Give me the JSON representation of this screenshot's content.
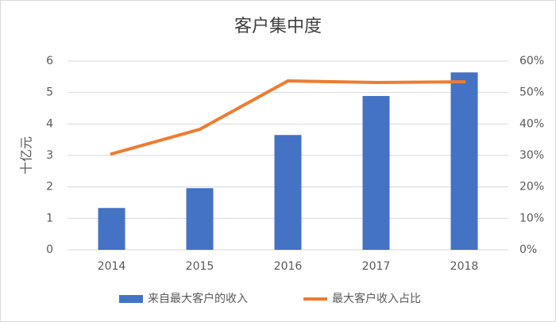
{
  "chart_data": {
    "type": "combo",
    "title": "客户集中度",
    "y_label": "十亿元",
    "categories": [
      "2014",
      "2015",
      "2016",
      "2017",
      "2018"
    ],
    "series": [
      {
        "name": "来自最大客户的收入",
        "type": "bar",
        "color": "#4472c4",
        "values": [
          1.33,
          1.96,
          3.65,
          4.89,
          5.64
        ]
      },
      {
        "name": "最大客户收入占比",
        "type": "line",
        "axis": "y2",
        "color": "#ed7d31",
        "values": [
          30.5,
          38.3,
          53.7,
          53.2,
          53.4
        ]
      }
    ],
    "ylim": [
      0,
      6
    ],
    "yticks": [
      0,
      1,
      2,
      3,
      4,
      5,
      6
    ],
    "y2lim": [
      0,
      60
    ],
    "y2ticks": [
      {
        "value": 0,
        "label": "0%"
      },
      {
        "value": 10,
        "label": "10%"
      },
      {
        "value": 20,
        "label": "20%"
      },
      {
        "value": 30,
        "label": "30%"
      },
      {
        "value": 40,
        "label": "40%"
      },
      {
        "value": 50,
        "label": "50%"
      },
      {
        "value": 60,
        "label": "60%"
      }
    ],
    "grid": true,
    "legend": "bottom"
  }
}
